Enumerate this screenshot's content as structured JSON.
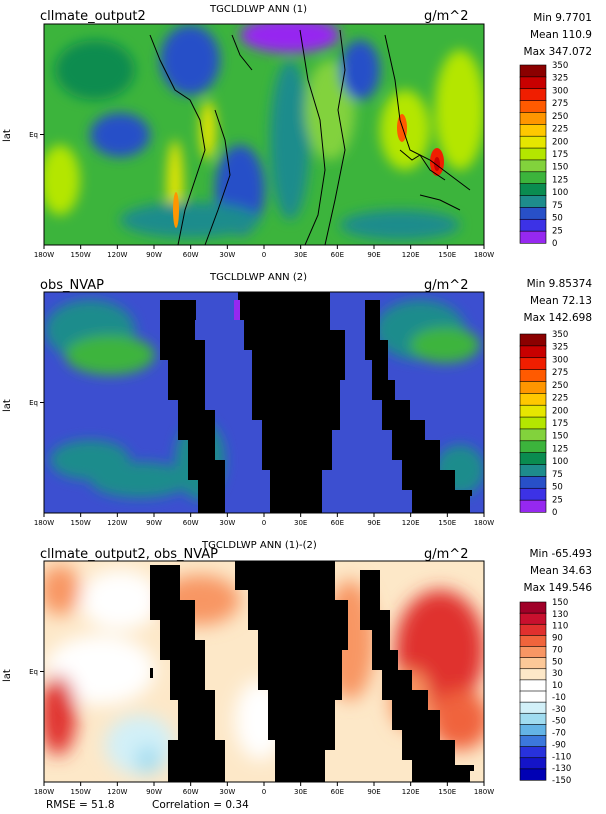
{
  "panels": [
    {
      "left_title": "cllmate_output2",
      "center_title": "TGCLDLWP ANN (1)",
      "units": "g/m^2",
      "stats": {
        "min": "Min 9.7701",
        "mean": "Mean 110.9",
        "max": "Max 347.072"
      },
      "ylabel": "lat",
      "eq_label": "Eq",
      "colorbar_labels": [
        "350",
        "325",
        "300",
        "275",
        "250",
        "225",
        "200",
        "175",
        "150",
        "125",
        "100",
        "75",
        "50",
        "25",
        "0"
      ]
    },
    {
      "left_title": "obs_NVAP",
      "center_title": "TGCLDLWP ANN (2)",
      "units": "g/m^2",
      "stats": {
        "min": "Min 9.85374",
        "mean": "Mean 72.13",
        "max": "Max 142.698"
      },
      "ylabel": "lat",
      "eq_label": "Eq",
      "colorbar_labels": [
        "350",
        "325",
        "300",
        "275",
        "250",
        "225",
        "200",
        "175",
        "150",
        "125",
        "100",
        "75",
        "50",
        "25",
        "0"
      ]
    },
    {
      "left_title": "cllmate_output2, obs_NVAP",
      "center_title": "TGCLDLWP ANN (1)-(2)",
      "units": "g/m^2",
      "stats": {
        "min": "Min -65.493",
        "mean": "Mean 34.63",
        "max": "Max 149.546"
      },
      "ylabel": "lat",
      "eq_label": "Eq",
      "colorbar_labels": [
        "150",
        "130",
        "110",
        "90",
        "70",
        "50",
        "30",
        "10",
        "-10",
        "-30",
        "-50",
        "-70",
        "-90",
        "-110",
        "-130",
        "-150"
      ]
    }
  ],
  "x_ticks": [
    "180W",
    "150W",
    "120W",
    "90W",
    "60W",
    "30W",
    "0",
    "30E",
    "60E",
    "90E",
    "120E",
    "150E",
    "180W"
  ],
  "footer": {
    "rmse": "RMSE = 51.8",
    "correlation": "Correlation = 0.34"
  },
  "colors": {
    "abs_scale": [
      "#8b0000",
      "#c80000",
      "#f01e00",
      "#ff5a00",
      "#ff9600",
      "#ffc800",
      "#e6e600",
      "#b4e600",
      "#82d23c",
      "#3cb43c",
      "#0a8c50",
      "#1e8c8c",
      "#2850c8",
      "#3c32e6",
      "#9628f0"
    ],
    "diff_scale": [
      "#a00028",
      "#c8102e",
      "#e0302e",
      "#f0643c",
      "#f89664",
      "#fcc898",
      "#fde8c8",
      "#ffffff",
      "#ffffff",
      "#d2f0f8",
      "#a0dcf0",
      "#64b4e6",
      "#3c78dc",
      "#2832dc",
      "#1414c8",
      "#0000b4"
    ],
    "land_mask": "#000000"
  }
}
